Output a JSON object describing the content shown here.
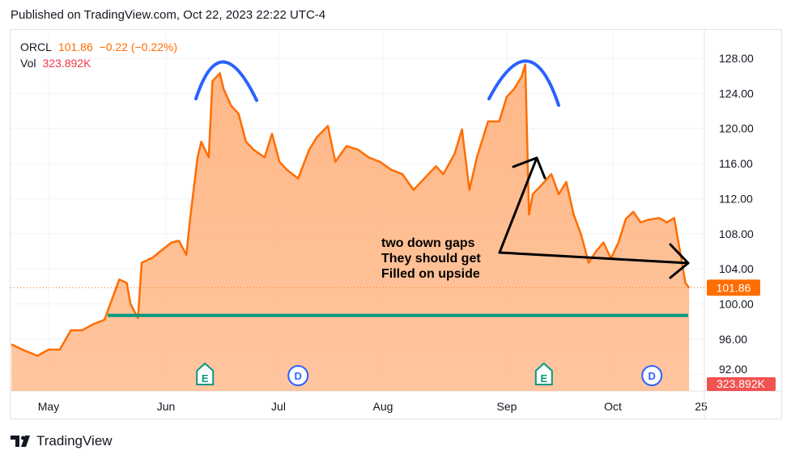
{
  "header": {
    "published": "Published on TradingView.com, Oct 22, 2023 22:22 UTC-4"
  },
  "legend": {
    "symbol": "ORCL",
    "price": "101.86",
    "change": "−0.22 (−0.22%)",
    "vol_label": "Vol",
    "vol_value": "323.892K"
  },
  "brand": {
    "name": "TradingView",
    "logo_icon": "tradingview-logo-icon"
  },
  "colors": {
    "line": "#ff6d00",
    "area": "#ffb787",
    "arcs": "#2962ff",
    "support": "#089981",
    "annotation": "#000000",
    "volume_badge": "#f05350"
  },
  "annotation_text": [
    "two down gaps",
    "They should get",
    "Filled on upside"
  ],
  "chart_data": {
    "type": "area",
    "series": [
      {
        "values": [
          [
            "2023-04-21",
            95.4
          ],
          [
            "2023-04-24",
            94.8
          ],
          [
            "2023-04-28",
            94.1
          ],
          [
            "2023-05-01",
            94.8
          ],
          [
            "2023-05-04",
            94.8
          ],
          [
            "2023-05-07",
            97.0
          ],
          [
            "2023-05-10",
            97.0
          ],
          [
            "2023-05-13",
            97.7
          ],
          [
            "2023-05-16",
            98.2
          ],
          [
            "2023-05-18",
            100.5
          ],
          [
            "2023-05-20",
            102.8
          ],
          [
            "2023-05-22",
            102.4
          ],
          [
            "2023-05-23",
            100.0
          ],
          [
            "2023-05-25",
            98.4
          ],
          [
            "2023-05-26",
            104.7
          ],
          [
            "2023-05-29",
            105.3
          ],
          [
            "2023-05-31",
            106.0
          ],
          [
            "2023-06-03",
            107.0
          ],
          [
            "2023-06-05",
            107.2
          ],
          [
            "2023-06-07",
            105.6
          ],
          [
            "2023-06-08",
            109.7
          ],
          [
            "2023-06-10",
            116.7
          ],
          [
            "2023-06-11",
            118.5
          ],
          [
            "2023-06-13",
            116.7
          ],
          [
            "2023-06-14",
            125.4
          ],
          [
            "2023-06-16",
            126.3
          ],
          [
            "2023-06-17",
            124.5
          ],
          [
            "2023-06-19",
            122.6
          ],
          [
            "2023-06-21",
            121.7
          ],
          [
            "2023-06-23",
            118.5
          ],
          [
            "2023-06-25",
            117.6
          ],
          [
            "2023-06-28",
            116.7
          ],
          [
            "2023-06-30",
            119.4
          ],
          [
            "2023-07-02",
            116.2
          ],
          [
            "2023-07-04",
            115.3
          ],
          [
            "2023-07-07",
            114.3
          ],
          [
            "2023-07-10",
            117.6
          ],
          [
            "2023-07-12",
            119.0
          ],
          [
            "2023-07-15",
            120.3
          ],
          [
            "2023-07-17",
            116.2
          ],
          [
            "2023-07-20",
            118.0
          ],
          [
            "2023-07-23",
            117.6
          ],
          [
            "2023-07-26",
            116.7
          ],
          [
            "2023-07-29",
            116.2
          ],
          [
            "2023-08-01",
            115.3
          ],
          [
            "2023-08-04",
            114.8
          ],
          [
            "2023-08-07",
            113.0
          ],
          [
            "2023-08-09",
            113.9
          ],
          [
            "2023-08-13",
            115.7
          ],
          [
            "2023-08-15",
            114.8
          ],
          [
            "2023-08-18",
            117.1
          ],
          [
            "2023-08-20",
            119.9
          ],
          [
            "2023-08-22",
            113.0
          ],
          [
            "2023-08-24",
            116.7
          ],
          [
            "2023-08-27",
            120.8
          ],
          [
            "2023-08-30",
            120.8
          ],
          [
            "2023-09-01",
            123.6
          ],
          [
            "2023-09-03",
            124.5
          ],
          [
            "2023-09-05",
            125.9
          ],
          [
            "2023-09-06",
            127.3
          ],
          [
            "2023-09-07",
            110.2
          ],
          [
            "2023-09-08",
            112.5
          ],
          [
            "2023-09-10",
            113.4
          ],
          [
            "2023-09-13",
            114.8
          ],
          [
            "2023-09-15",
            112.5
          ],
          [
            "2023-09-17",
            113.9
          ],
          [
            "2023-09-19",
            110.2
          ],
          [
            "2023-09-21",
            107.9
          ],
          [
            "2023-09-23",
            104.7
          ],
          [
            "2023-09-25",
            106.0
          ],
          [
            "2023-09-27",
            107.0
          ],
          [
            "2023-09-29",
            105.2
          ],
          [
            "2023-10-01",
            107.0
          ],
          [
            "2023-10-03",
            109.7
          ],
          [
            "2023-10-05",
            110.5
          ],
          [
            "2023-10-07",
            109.3
          ],
          [
            "2023-10-09",
            109.6
          ],
          [
            "2023-10-12",
            109.8
          ],
          [
            "2023-10-14",
            109.3
          ],
          [
            "2023-10-16",
            109.8
          ],
          [
            "2023-10-19",
            102.4
          ],
          [
            "2023-10-20",
            101.86
          ]
        ]
      }
    ],
    "x_ticks": [
      "May",
      "Jun",
      "Jul",
      "Aug",
      "Sep",
      "Oct",
      "25"
    ],
    "y_ticks": [
      "92.00",
      "96.00",
      "100.00",
      "104.00",
      "108.00",
      "112.00",
      "116.00",
      "120.00",
      "124.00",
      "128.00"
    ],
    "ylim": [
      92,
      128
    ],
    "last_price_label": "101.86",
    "volume_label": "323.892K",
    "support_level": 98.7,
    "events": [
      {
        "type": "E",
        "date": "2023-06-12"
      },
      {
        "type": "D",
        "date": "2023-07-07"
      },
      {
        "type": "E",
        "date": "2023-09-11"
      },
      {
        "type": "D",
        "date": "2023-10-10"
      }
    ],
    "grid": true
  }
}
